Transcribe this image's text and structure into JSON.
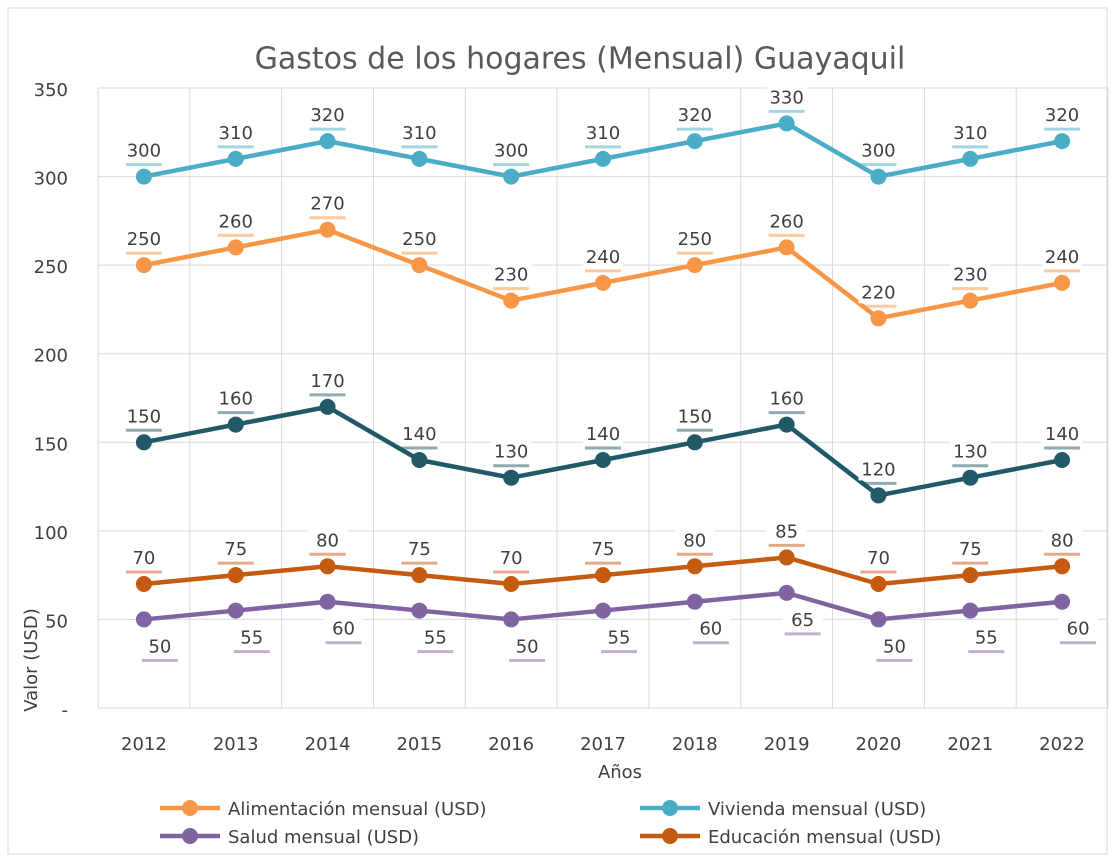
{
  "chart_data": {
    "type": "line",
    "title": "Gastos de los hogares (Mensual) Guayaquil",
    "x_label": "Años",
    "y_label": "Valor (USD)",
    "categories": [
      "2012",
      "2013",
      "2014",
      "2015",
      "2016",
      "2017",
      "2018",
      "2019",
      "2020",
      "2021",
      "2022"
    ],
    "series": [
      {
        "name": "Alimentación mensual (USD)",
        "color": "#F79646",
        "values": [
          250,
          260,
          270,
          250,
          230,
          240,
          250,
          260,
          220,
          230,
          240
        ]
      },
      {
        "name": "Vivienda mensual (USD)",
        "color": "#4BACC6",
        "values": [
          300,
          310,
          320,
          310,
          300,
          310,
          320,
          330,
          300,
          310,
          320
        ]
      },
      {
        "name": "Salud mensual (USD)",
        "color": "#8064A2",
        "values": [
          50,
          55,
          60,
          55,
          50,
          55,
          60,
          65,
          50,
          55,
          60
        ]
      },
      {
        "name": "Educación mensual (USD)",
        "color": "#C55A11",
        "values": [
          70,
          75,
          80,
          75,
          70,
          75,
          80,
          85,
          70,
          75,
          80
        ]
      },
      {
        "color": "#215968",
        "values": [
          150,
          160,
          170,
          140,
          130,
          140,
          150,
          160,
          120,
          130,
          140
        ]
      }
    ],
    "ylim": [
      0,
      350
    ],
    "yticks": [
      {
        "value": 0,
        "label": "-"
      },
      50,
      100,
      150,
      200,
      250,
      300,
      350
    ],
    "grid": true,
    "legend": "bottom"
  }
}
